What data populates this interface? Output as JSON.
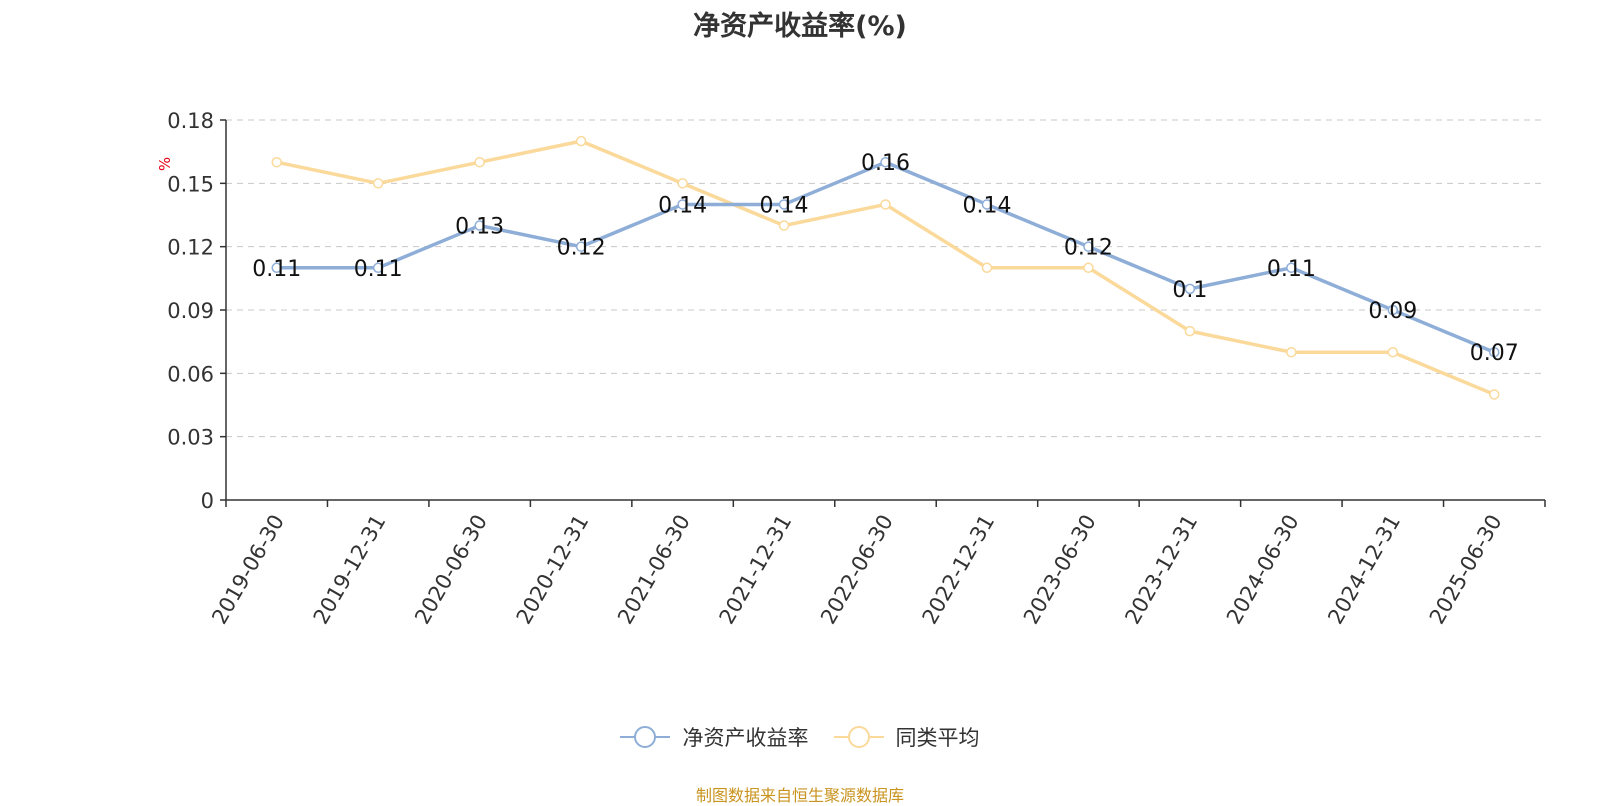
{
  "title": "净资产收益率(%)",
  "source": "制图数据来自恒生聚源数据库",
  "colors": {
    "series1": "#8eaed8",
    "series2": "#fad99a",
    "grid": "#c8c8c8",
    "axis": "#333333",
    "unit": "#e60012",
    "source": "#c9931f"
  },
  "chart_data": {
    "type": "line",
    "title": "净资产收益率(%)",
    "ylabel": "%",
    "xlabel": "",
    "ylim": [
      0,
      0.18
    ],
    "yticks": [
      "0",
      "0.03",
      "0.06",
      "0.09",
      "0.12",
      "0.15",
      "0.18"
    ],
    "grid": true,
    "legend_position": "bottom",
    "categories": [
      "2019-06-30",
      "2019-12-31",
      "2020-06-30",
      "2020-12-31",
      "2021-06-30",
      "2021-12-31",
      "2022-06-30",
      "2022-12-31",
      "2023-06-30",
      "2023-12-31",
      "2024-06-30",
      "2024-12-31",
      "2025-06-30"
    ],
    "series": [
      {
        "name": "净资产收益率",
        "values": [
          0.11,
          0.11,
          0.13,
          0.12,
          0.14,
          0.14,
          0.16,
          0.14,
          0.12,
          0.1,
          0.11,
          0.09,
          0.07
        ],
        "labels": [
          "0.11",
          "0.11",
          "0.13",
          "0.12",
          "0.14",
          "0.14",
          "0.16",
          "0.14",
          "0.12",
          "0.1",
          "0.11",
          "0.09",
          "0.07"
        ]
      },
      {
        "name": "同类平均",
        "values": [
          0.16,
          0.15,
          0.16,
          0.17,
          0.15,
          0.13,
          0.14,
          0.11,
          0.11,
          0.08,
          0.07,
          0.07,
          0.05
        ]
      }
    ]
  }
}
